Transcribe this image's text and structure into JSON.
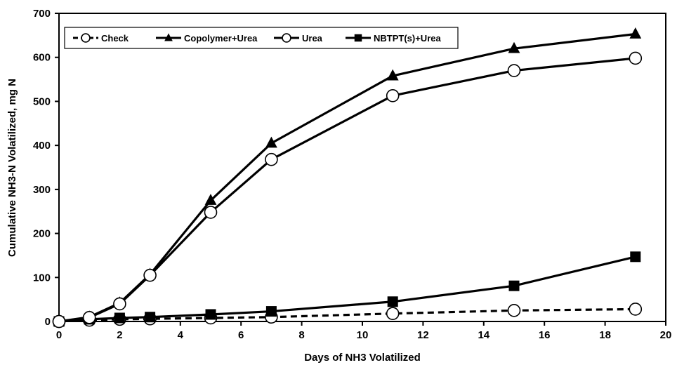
{
  "chart_data": {
    "type": "line",
    "title": "",
    "xlabel": "Days of NH3 Volatilized",
    "ylabel": "Cumulative NH3-N Volatilized, mg N",
    "xlim": [
      0,
      20
    ],
    "ylim": [
      0,
      700
    ],
    "xticks": [
      0,
      2,
      4,
      6,
      8,
      10,
      12,
      14,
      16,
      18,
      20
    ],
    "yticks": [
      0,
      100,
      200,
      300,
      400,
      500,
      600,
      700
    ],
    "grid": false,
    "legend_position": "top",
    "colors": {
      "line": "#000000",
      "marker_open_fill": "#ffffff",
      "background": "#ffffff"
    },
    "series": [
      {
        "name": "Check",
        "line_style": "dashed",
        "marker": "open-circle",
        "x": [
          0,
          1,
          2,
          3,
          5,
          7,
          11,
          15,
          19
        ],
        "y": [
          0,
          3,
          5,
          6,
          8,
          10,
          18,
          25,
          28
        ]
      },
      {
        "name": "Copolymer+Urea",
        "line_style": "solid",
        "marker": "filled-triangle",
        "x": [
          0,
          1,
          2,
          3,
          5,
          7,
          11,
          15,
          19
        ],
        "y": [
          0,
          10,
          42,
          107,
          275,
          405,
          558,
          620,
          653
        ]
      },
      {
        "name": "Urea",
        "line_style": "solid",
        "marker": "open-circle",
        "x": [
          0,
          1,
          2,
          3,
          5,
          7,
          11,
          15,
          19
        ],
        "y": [
          0,
          9,
          40,
          105,
          248,
          368,
          513,
          570,
          598
        ]
      },
      {
        "name": "NBTPT(s)+Urea",
        "line_style": "solid",
        "marker": "filled-square",
        "x": [
          0,
          1,
          2,
          3,
          5,
          7,
          11,
          15,
          19
        ],
        "y": [
          0,
          5,
          8,
          10,
          16,
          23,
          45,
          81,
          147
        ]
      }
    ]
  }
}
